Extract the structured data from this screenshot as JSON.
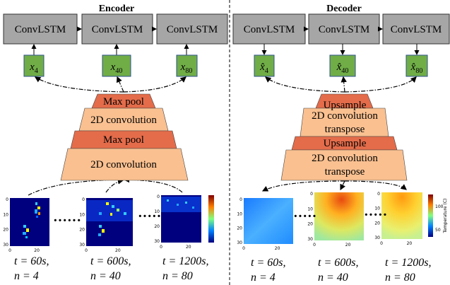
{
  "encoder": {
    "title": "Encoder",
    "cells": [
      "ConvLSTM",
      "ConvLSTM",
      "ConvLSTM"
    ],
    "inputs": [
      {
        "symbol": "x",
        "sub": "4"
      },
      {
        "symbol": "x",
        "sub": "40"
      },
      {
        "symbol": "x",
        "sub": "80"
      }
    ],
    "layers": [
      [
        "Max pool"
      ],
      [
        "2D convolution"
      ],
      [
        "Max pool"
      ],
      [
        "2D convolution"
      ]
    ],
    "frames": [
      {
        "t": "t = 60s,",
        "n": "n = 4",
        "xticks": [
          "0",
          "20"
        ],
        "yticks": [
          "0",
          "10",
          "20",
          "30"
        ]
      },
      {
        "t": "t = 600s,",
        "n": "n = 40",
        "xticks": [
          "0",
          "20"
        ],
        "yticks": [
          "0",
          "10",
          "20",
          "30"
        ]
      },
      {
        "t": "t = 1200s,",
        "n": "n = 80",
        "xticks": [
          "0",
          "20"
        ],
        "yticks": [
          "0",
          "10",
          "20",
          "30"
        ]
      }
    ]
  },
  "decoder": {
    "title": "Decoder",
    "cells": [
      "ConvLSTM",
      "ConvLSTM",
      "ConvLSTM"
    ],
    "outputs": [
      {
        "symbol": "x̂",
        "sub": "4"
      },
      {
        "symbol": "x̂",
        "sub": "40"
      },
      {
        "symbol": "x̂",
        "sub": "80"
      }
    ],
    "layers": [
      [
        "Upsample"
      ],
      [
        "2D convolution",
        "transpose"
      ],
      [
        "Upsample"
      ],
      [
        "2D convolution",
        "transpose"
      ]
    ],
    "frames": [
      {
        "t": "t = 60s,",
        "n": "n = 4",
        "xticks": [
          "0",
          "20"
        ],
        "yticks": [
          "0",
          "10",
          "20",
          "30"
        ]
      },
      {
        "t": "t = 600s,",
        "n": "n = 40",
        "xticks": [
          "0",
          "20"
        ],
        "yticks": [
          "0",
          "10",
          "20",
          "30"
        ]
      },
      {
        "t": "t = 1200s,",
        "n": "n = 80",
        "xticks": [
          "0",
          "20"
        ],
        "yticks": [
          "0",
          "10",
          "20",
          "30"
        ]
      }
    ],
    "colorbar": {
      "ticks": [
        "100",
        "50"
      ],
      "label": "Temperature (C)"
    }
  }
}
